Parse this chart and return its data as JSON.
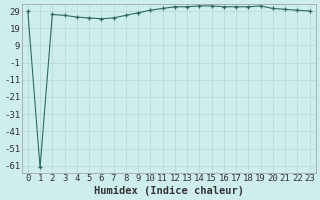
{
  "xlabel": "Humidex (Indice chaleur)",
  "x_values": [
    0,
    1,
    2,
    3,
    4,
    5,
    6,
    7,
    8,
    9,
    10,
    11,
    12,
    13,
    14,
    15,
    16,
    17,
    18,
    19,
    20,
    21,
    22,
    23
  ],
  "y_values": [
    29,
    -62,
    27,
    26.5,
    25.5,
    25,
    24.5,
    25,
    26.5,
    28,
    29.5,
    30.5,
    31.5,
    31.5,
    32,
    32,
    31.5,
    31.5,
    31.5,
    32,
    30.5,
    30,
    29.5,
    29
  ],
  "ylim": [
    -65,
    33
  ],
  "yticks": [
    29,
    19,
    9,
    -1,
    -11,
    -21,
    -31,
    -41,
    -51,
    -61
  ],
  "line_color": "#2e6b5e",
  "marker": "+",
  "bg_color": "#ceeeed",
  "grid_color": "#b8d8d6",
  "font_color": "#333333",
  "font_size": 6.5,
  "xlabel_fontsize": 7.5
}
